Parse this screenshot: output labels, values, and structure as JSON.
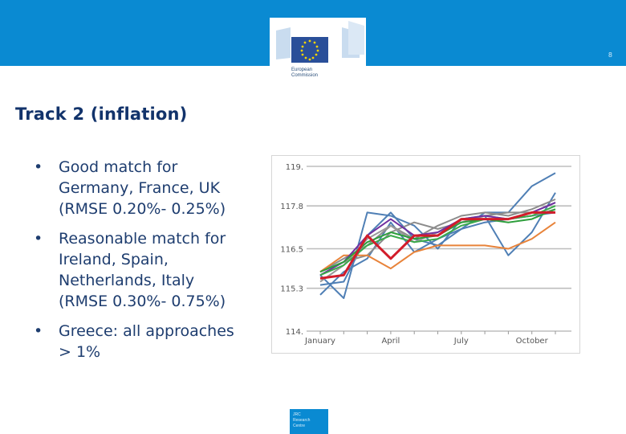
{
  "header": {
    "page_number": "8",
    "logo_text_line1": "European",
    "logo_text_line2": "Commission"
  },
  "slide": {
    "title": "Track 2 (inflation)",
    "bullets": [
      [
        "Good match for",
        "Germany, France, UK",
        "(RMSE 0.20%- 0.25%)"
      ],
      [
        "Reasonable match for",
        "Ireland, Spain,",
        "Netherlands, Italy",
        "(RMSE 0.30%- 0.75%)"
      ],
      [
        "Greece: all approaches",
        "> 1%"
      ]
    ]
  },
  "footer": {
    "jrc_line1": "JRC",
    "jrc_line2": "Research",
    "jrc_line3": "Centre"
  },
  "colors": {
    "band": "#0a8ad2",
    "title": "#12336b",
    "text": "#1e3d6f"
  },
  "chart_data": {
    "type": "line",
    "xlabel": "",
    "ylabel": "",
    "x_tick_labels": [
      "January",
      "April",
      "July",
      "October"
    ],
    "x_tick_index": [
      0,
      3,
      6,
      9
    ],
    "y_tick_labels": [
      "119.",
      "117.8",
      "116.5",
      "115.3",
      "114."
    ],
    "y_tick_values": [
      119.0,
      117.8,
      116.5,
      115.3,
      114.0
    ],
    "ylim": [
      114.0,
      119.0
    ],
    "grid": true,
    "legend": "none",
    "series": [
      {
        "color": "#4f7fb5",
        "values": [
          115.4,
          115.5,
          116.9,
          117.6,
          116.8,
          116.6,
          117.1,
          117.6,
          117.6,
          118.4,
          118.8
        ]
      },
      {
        "color": "#4f7fb5",
        "values": [
          115.7,
          115.0,
          117.6,
          117.5,
          117.2,
          116.5,
          117.4,
          117.5,
          116.3,
          117.0,
          118.2
        ]
      },
      {
        "color": "#4f7fb5",
        "values": [
          115.1,
          115.8,
          116.2,
          117.3,
          116.4,
          116.8,
          117.1,
          117.3,
          117.4,
          117.5,
          117.6
        ]
      },
      {
        "color": "#8c8c8c",
        "values": [
          115.8,
          116.2,
          116.6,
          117.2,
          116.8,
          117.2,
          117.5,
          117.6,
          117.5,
          117.7,
          118.0
        ]
      },
      {
        "color": "#8c8c8c",
        "values": [
          115.8,
          116.1,
          116.3,
          117.0,
          117.3,
          117.1,
          117.3,
          117.5,
          117.6,
          117.6,
          117.9
        ]
      },
      {
        "color": "#9a9a9a",
        "values": [
          115.5,
          116.0,
          116.8,
          117.2,
          116.7,
          117.0,
          117.3,
          117.5,
          117.4,
          117.5,
          117.7
        ]
      },
      {
        "color": "#e8833a",
        "values": [
          115.8,
          116.3,
          116.3,
          115.9,
          116.4,
          116.6,
          116.6,
          116.6,
          116.5,
          116.8,
          117.3
        ]
      },
      {
        "color": "#7030a0",
        "values": [
          115.7,
          116.1,
          116.9,
          117.4,
          116.9,
          117.0,
          117.4,
          117.5,
          117.4,
          117.6,
          117.9
        ]
      },
      {
        "color": "#2e9e3c",
        "values": [
          115.8,
          116.1,
          116.7,
          117.0,
          116.8,
          116.9,
          117.3,
          117.4,
          117.3,
          117.4,
          117.7
        ]
      },
      {
        "color": "#3aaa4a",
        "values": [
          115.7,
          116.0,
          116.6,
          116.9,
          116.7,
          116.8,
          117.2,
          117.4,
          117.4,
          117.5,
          117.8
        ]
      },
      {
        "color": "#d21c2a",
        "values": [
          115.6,
          115.7,
          116.9,
          116.2,
          116.9,
          116.9,
          117.4,
          117.4,
          117.4,
          117.6,
          117.6
        ]
      }
    ]
  }
}
